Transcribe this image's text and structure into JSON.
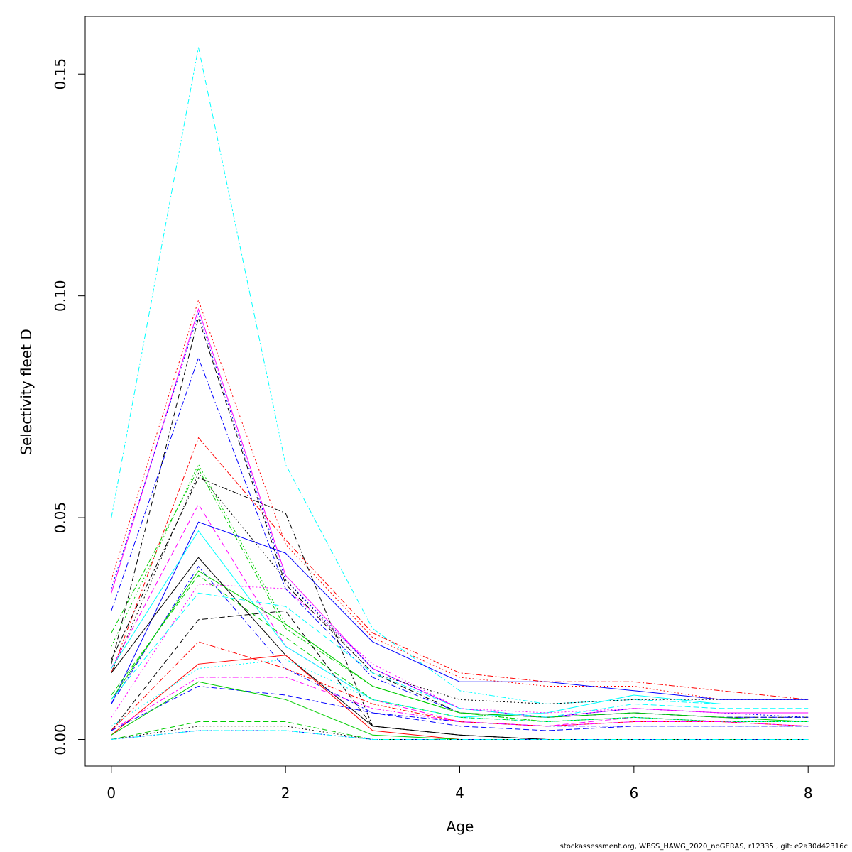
{
  "chart_data": {
    "type": "line",
    "title": "",
    "xlabel": "Age",
    "ylabel": "Selectivity fleet D",
    "xlim": [
      -0.3,
      8.3
    ],
    "ylim": [
      -0.006,
      0.163
    ],
    "x": [
      0,
      1,
      2,
      3,
      4,
      5,
      6,
      7,
      8
    ],
    "x_ticks": [
      "0",
      "2",
      "4",
      "6",
      "8"
    ],
    "y_ticks": [
      "0.00",
      "0.05",
      "0.10",
      "0.15"
    ],
    "grid": false,
    "legend": "none",
    "series": [
      {
        "color": "#00ffff",
        "dash": "dashdot",
        "values": [
          0.05,
          0.156,
          0.062,
          0.025,
          0.011,
          0.008,
          0.009,
          0.008,
          0.008
        ]
      },
      {
        "color": "#ff0000",
        "dash": "dotted",
        "values": [
          0.036,
          0.099,
          0.044,
          0.023,
          0.014,
          0.012,
          0.012,
          0.009,
          0.009
        ]
      },
      {
        "color": "#ff00ff",
        "dash": "solid",
        "values": [
          0.033,
          0.097,
          0.037,
          0.016,
          0.007,
          0.005,
          0.007,
          0.006,
          0.006
        ]
      },
      {
        "color": "#0000ff",
        "dash": "dotted",
        "values": [
          0.034,
          0.096,
          0.036,
          0.016,
          0.007,
          0.005,
          0.007,
          0.006,
          0.005
        ]
      },
      {
        "color": "#000000",
        "dash": "dashed",
        "values": [
          0.017,
          0.095,
          0.035,
          0.015,
          0.006,
          0.005,
          0.006,
          0.005,
          0.005
        ]
      },
      {
        "color": "#0000ff",
        "dash": "dashdot",
        "values": [
          0.029,
          0.086,
          0.034,
          0.014,
          0.006,
          0.005,
          0.006,
          0.005,
          0.005
        ]
      },
      {
        "color": "#ff0000",
        "dash": "dashdot",
        "values": [
          0.015,
          0.068,
          0.045,
          0.024,
          0.015,
          0.013,
          0.013,
          0.011,
          0.009
        ]
      },
      {
        "color": "#00cd00",
        "dash": "dotted",
        "values": [
          0.021,
          0.062,
          0.026,
          0.012,
          0.006,
          0.004,
          0.005,
          0.004,
          0.004
        ]
      },
      {
        "color": "#00cd00",
        "dash": "dashdot",
        "values": [
          0.024,
          0.061,
          0.025,
          0.012,
          0.006,
          0.004,
          0.005,
          0.004,
          0.004
        ]
      },
      {
        "color": "#000000",
        "dash": "dotted",
        "values": [
          0.015,
          0.06,
          0.036,
          0.015,
          0.009,
          0.008,
          0.009,
          0.009,
          0.009
        ]
      },
      {
        "color": "#000000",
        "dash": "dashdot",
        "values": [
          0.018,
          0.059,
          0.051,
          0.003,
          0.001,
          0.0,
          0.0,
          0.0,
          0.0
        ]
      },
      {
        "color": "#ff00ff",
        "dash": "dashed",
        "values": [
          0.016,
          0.053,
          0.021,
          0.009,
          0.004,
          0.003,
          0.005,
          0.004,
          0.004
        ]
      },
      {
        "color": "#0000ff",
        "dash": "solid",
        "values": [
          0.008,
          0.049,
          0.042,
          0.022,
          0.013,
          0.013,
          0.011,
          0.009,
          0.009
        ]
      },
      {
        "color": "#00ffff",
        "dash": "solid",
        "values": [
          0.016,
          0.047,
          0.021,
          0.009,
          0.005,
          0.006,
          0.01,
          0.008,
          0.008
        ]
      },
      {
        "color": "#000000",
        "dash": "solid",
        "values": [
          0.015,
          0.041,
          0.019,
          0.003,
          0.001,
          0.0,
          0.0,
          0.0,
          0.0
        ]
      },
      {
        "color": "#0000ff",
        "dash": "dashdot",
        "values": [
          0.008,
          0.039,
          0.016,
          0.006,
          0.004,
          0.003,
          0.003,
          0.003,
          0.003
        ]
      },
      {
        "color": "#00cd00",
        "dash": "solid",
        "values": [
          0.009,
          0.038,
          0.026,
          0.012,
          0.006,
          0.005,
          0.006,
          0.005,
          0.004
        ]
      },
      {
        "color": "#00cd00",
        "dash": "dashed",
        "values": [
          0.01,
          0.037,
          0.023,
          0.009,
          0.005,
          0.004,
          0.005,
          0.004,
          0.004
        ]
      },
      {
        "color": "#ff00ff",
        "dash": "dotted",
        "values": [
          0.005,
          0.035,
          0.034,
          0.017,
          0.007,
          0.006,
          0.007,
          0.006,
          0.006
        ]
      },
      {
        "color": "#00ffff",
        "dash": "dashed",
        "values": [
          0.009,
          0.033,
          0.03,
          0.015,
          0.007,
          0.005,
          0.008,
          0.007,
          0.007
        ]
      },
      {
        "color": "#000000",
        "dash": "dashed",
        "values": [
          0.002,
          0.027,
          0.029,
          0.003,
          0.001,
          0.0,
          0.0,
          0.0,
          0.0
        ]
      },
      {
        "color": "#ff0000",
        "dash": "dashdot",
        "values": [
          0.002,
          0.022,
          0.016,
          0.008,
          0.004,
          0.003,
          0.004,
          0.004,
          0.003
        ]
      },
      {
        "color": "#ff0000",
        "dash": "solid",
        "values": [
          0.001,
          0.017,
          0.019,
          0.002,
          0.0,
          0.0,
          0.0,
          0.0,
          0.0
        ]
      },
      {
        "color": "#00ffff",
        "dash": "dotted",
        "values": [
          0.003,
          0.016,
          0.018,
          0.009,
          0.005,
          0.004,
          0.005,
          0.004,
          0.004
        ]
      },
      {
        "color": "#ff00ff",
        "dash": "dashdot",
        "values": [
          0.002,
          0.014,
          0.014,
          0.007,
          0.004,
          0.003,
          0.004,
          0.004,
          0.003
        ]
      },
      {
        "color": "#0000ff",
        "dash": "dashed",
        "values": [
          0.002,
          0.012,
          0.01,
          0.006,
          0.003,
          0.002,
          0.003,
          0.003,
          0.003
        ]
      },
      {
        "color": "#00cd00",
        "dash": "solid",
        "values": [
          0.001,
          0.013,
          0.009,
          0.001,
          0.0,
          0.0,
          0.0,
          0.0,
          0.0
        ]
      },
      {
        "color": "#00cd00",
        "dash": "dashed",
        "values": [
          0.0,
          0.004,
          0.004,
          0.0,
          0.0,
          0.0,
          0.0,
          0.0,
          0.0
        ]
      },
      {
        "color": "#000000",
        "dash": "dotted",
        "values": [
          0.0,
          0.003,
          0.003,
          0.0,
          0.0,
          0.0,
          0.0,
          0.0,
          0.0
        ]
      },
      {
        "color": "#0000ff",
        "dash": "dotted",
        "values": [
          0.0,
          0.002,
          0.002,
          0.0,
          0.0,
          0.0,
          0.0,
          0.0,
          0.0
        ]
      },
      {
        "color": "#00ffff",
        "dash": "dashdot",
        "values": [
          0.0,
          0.002,
          0.002,
          0.0,
          0.0,
          0.0,
          0.0,
          0.0,
          0.0
        ]
      }
    ]
  },
  "footer": "stockassessment.org, WBSS_HAWG_2020_noGERAS, r12335 , git: e2a30d42316c"
}
